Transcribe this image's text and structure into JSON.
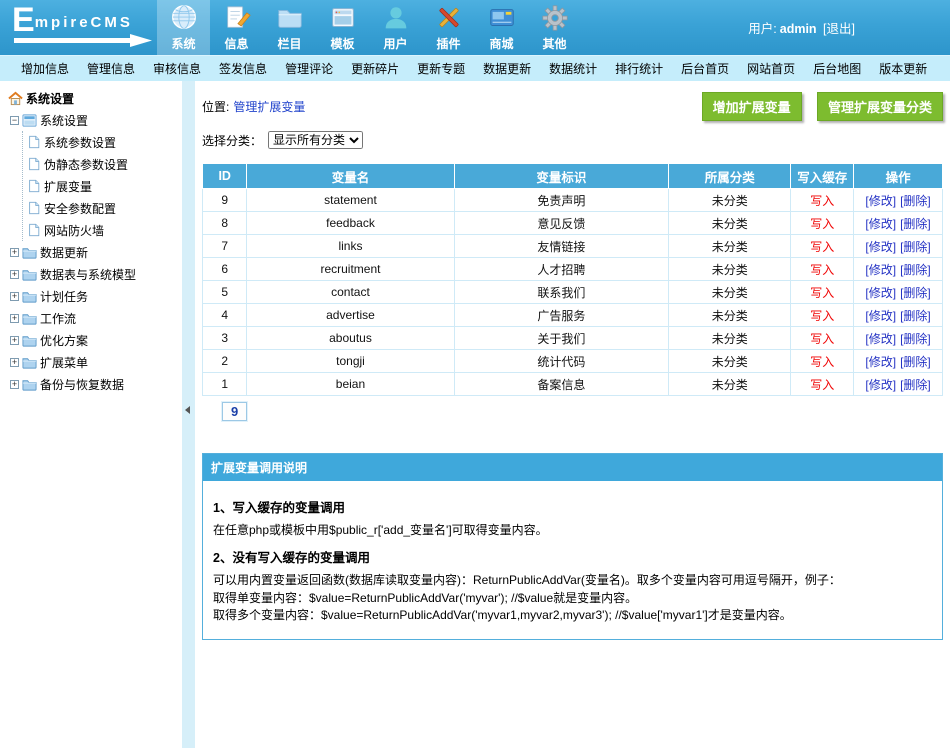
{
  "colors": {
    "header_blue": "#3aa2d6",
    "subnav_cyan": "#c5edfb",
    "table_header_blue": "#49a9d8",
    "button_green": "#7dbc2f",
    "link_blue": "#2533c4",
    "cache_red": "#f00505"
  },
  "header": {
    "logo_initial": "E",
    "logo_rest": "mpireCMS",
    "user_label": "用户:",
    "username": "admin",
    "logout": "[退出]",
    "nav": [
      {
        "key": "system",
        "label": "系统",
        "icon": "globe-icon",
        "active": true
      },
      {
        "key": "info",
        "label": "信息",
        "icon": "document-icon",
        "active": false
      },
      {
        "key": "column",
        "label": "栏目",
        "icon": "folder-icon",
        "active": false
      },
      {
        "key": "template",
        "label": "模板",
        "icon": "window-icon",
        "active": false
      },
      {
        "key": "user",
        "label": "用户",
        "icon": "user-icon",
        "active": false
      },
      {
        "key": "plugin",
        "label": "插件",
        "icon": "tools-icon",
        "active": false
      },
      {
        "key": "shop",
        "label": "商城",
        "icon": "card-icon",
        "active": false
      },
      {
        "key": "other",
        "label": "其他",
        "icon": "gear-icon",
        "active": false
      }
    ]
  },
  "subnav": [
    "增加信息",
    "管理信息",
    "审核信息",
    "签发信息",
    "管理评论",
    "更新碎片",
    "更新专题",
    "数据更新",
    "数据统计",
    "排行统计",
    "后台首页",
    "网站首页",
    "后台地图",
    "版本更新"
  ],
  "sidebar": {
    "root": "系统设置",
    "tree": [
      {
        "label": "系统设置",
        "expanded": true,
        "children": [
          "系统参数设置",
          "伪静态参数设置",
          "扩展变量",
          "安全参数配置",
          "网站防火墙"
        ]
      },
      {
        "label": "数据更新",
        "expanded": false
      },
      {
        "label": "数据表与系统模型",
        "expanded": false
      },
      {
        "label": "计划任务",
        "expanded": false
      },
      {
        "label": "工作流",
        "expanded": false
      },
      {
        "label": "优化方案",
        "expanded": false
      },
      {
        "label": "扩展菜单",
        "expanded": false
      },
      {
        "label": "备份与恢复数据",
        "expanded": false
      }
    ]
  },
  "main": {
    "breadcrumb_label": "位置:",
    "breadcrumb_link": "管理扩展变量",
    "buttons": {
      "add": "增加扩展变量",
      "manage_class": "管理扩展变量分类"
    },
    "filter": {
      "label": "选择分类：",
      "selected": "显示所有分类"
    },
    "table": {
      "headers": [
        "ID",
        "变量名",
        "变量标识",
        "所属分类",
        "写入缓存",
        "操作"
      ],
      "rows": [
        {
          "id": "9",
          "name": "statement",
          "title": "免责声明",
          "category": "未分类",
          "cache": "写入",
          "ops": [
            "[修改]",
            "[删除]"
          ]
        },
        {
          "id": "8",
          "name": "feedback",
          "title": "意见反馈",
          "category": "未分类",
          "cache": "写入",
          "ops": [
            "[修改]",
            "[删除]"
          ]
        },
        {
          "id": "7",
          "name": "links",
          "title": "友情链接",
          "category": "未分类",
          "cache": "写入",
          "ops": [
            "[修改]",
            "[删除]"
          ]
        },
        {
          "id": "6",
          "name": "recruitment",
          "title": "人才招聘",
          "category": "未分类",
          "cache": "写入",
          "ops": [
            "[修改]",
            "[删除]"
          ]
        },
        {
          "id": "5",
          "name": "contact",
          "title": "联系我们",
          "category": "未分类",
          "cache": "写入",
          "ops": [
            "[修改]",
            "[删除]"
          ]
        },
        {
          "id": "4",
          "name": "advertise",
          "title": "广告服务",
          "category": "未分类",
          "cache": "写入",
          "ops": [
            "[修改]",
            "[删除]"
          ]
        },
        {
          "id": "3",
          "name": "aboutus",
          "title": "关于我们",
          "category": "未分类",
          "cache": "写入",
          "ops": [
            "[修改]",
            "[删除]"
          ]
        },
        {
          "id": "2",
          "name": "tongji",
          "title": "统计代码",
          "category": "未分类",
          "cache": "写入",
          "ops": [
            "[修改]",
            "[删除]"
          ]
        },
        {
          "id": "1",
          "name": "beian",
          "title": "备案信息",
          "category": "未分类",
          "cache": "写入",
          "ops": [
            "[修改]",
            "[删除]"
          ]
        }
      ]
    },
    "page_count": "9",
    "help": {
      "title": "扩展变量调用说明",
      "sections": [
        {
          "heading": "1、写入缓存的变量调用",
          "lines": [
            "在任意php或模板中用$public_r['add_变量名']可取得变量内容。"
          ]
        },
        {
          "heading": "2、没有写入缓存的变量调用",
          "lines": [
            "可以用内置变量返回函数(数据库读取变量内容)：ReturnPublicAddVar(变量名)。取多个变量内容可用逗号隔开，例子：",
            "取得单变量内容：$value=ReturnPublicAddVar('myvar'); //$value就是变量内容。",
            "取得多个变量内容：$value=ReturnPublicAddVar('myvar1,myvar2,myvar3'); //$value['myvar1']才是变量内容。"
          ]
        }
      ]
    }
  }
}
